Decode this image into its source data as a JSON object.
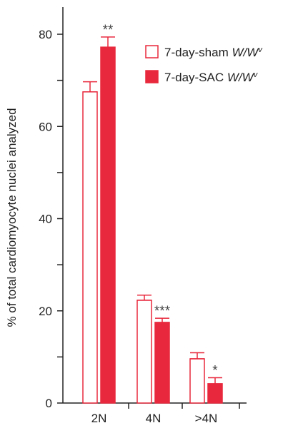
{
  "chart_data": {
    "type": "bar",
    "ylabel": "% of total cardiomyocyte nuclei analyzed",
    "xlabel": "",
    "categories": [
      "2N",
      "4N",
      ">4N"
    ],
    "ylim": [
      0,
      85
    ],
    "yticks": [
      0,
      20,
      40,
      60,
      80
    ],
    "grid": false,
    "legend_position": "top-right",
    "colors": {
      "sham": "#e8283c",
      "sac": "#e8283c",
      "axis": "#222222"
    },
    "series": [
      {
        "name": "7-day-sham",
        "name_italic": "W/W",
        "name_sup": "v",
        "style": "open",
        "values": [
          67.5,
          22.3,
          9.6
        ],
        "errors": [
          2.2,
          1.1,
          1.3
        ]
      },
      {
        "name": "7-day-SAC",
        "name_italic": "W/W",
        "name_sup": "v",
        "style": "filled",
        "values": [
          77.2,
          17.5,
          4.2
        ],
        "errors": [
          2.2,
          0.9,
          1.3
        ]
      }
    ],
    "annotations": [
      "**",
      "***",
      "*"
    ]
  }
}
